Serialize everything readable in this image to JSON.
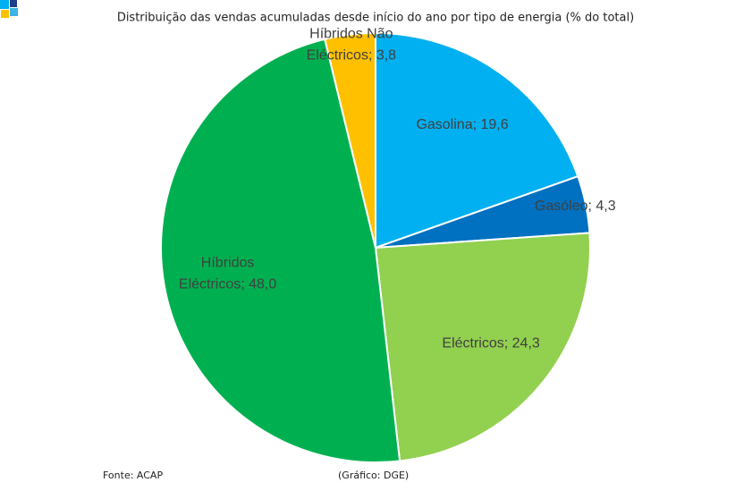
{
  "chart_data": {
    "type": "pie",
    "title": "Distribuição das vendas acumuladas desde início do ano por tipo de energia (% do total)",
    "values": [
      19.6,
      4.3,
      24.3,
      48.0,
      3.8
    ],
    "value_labels": [
      "Gasolina; 19,6",
      "Gasóleo; 4,3",
      "Eléctricos; 24,3",
      "Híbridos Eléctricos; 48,0",
      "Híbridos Não Eléctricos; 3,8"
    ],
    "colors": [
      "#00b0f0",
      "#0070c0",
      "#92d050",
      "#00b050",
      "#ffc000"
    ],
    "source": "Fonte: ACAP",
    "credit": "(Gráfico: DGE)"
  }
}
